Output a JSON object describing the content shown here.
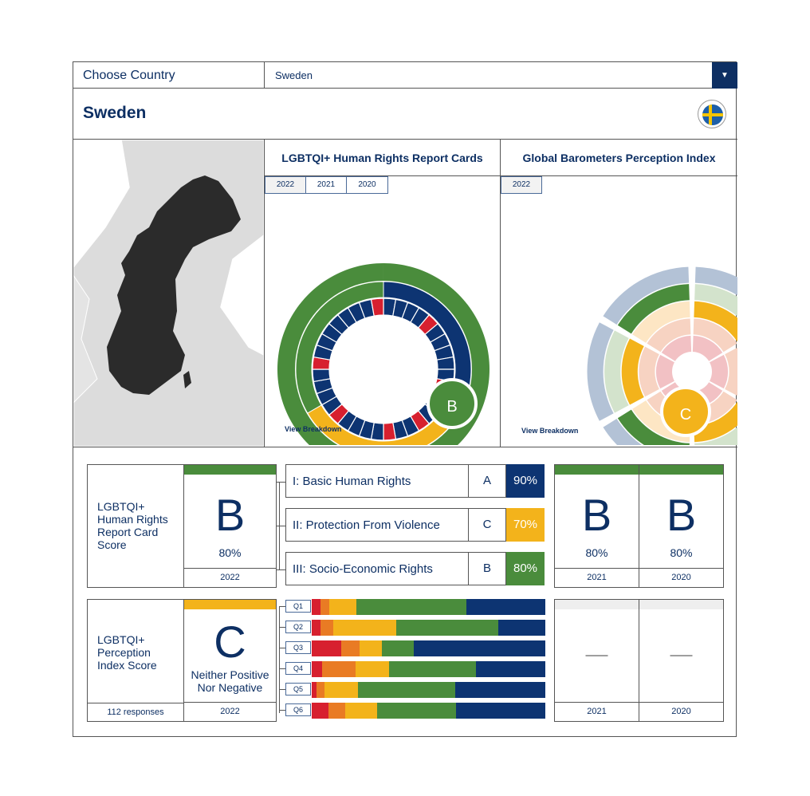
{
  "header": {
    "choose_label": "Choose Country",
    "selected_country": "Sweden",
    "country_title": "Sweden"
  },
  "colors": {
    "navy": "#0d3472",
    "green": "#4a8c3c",
    "yellow": "#f3b31b",
    "red": "#d7202f",
    "orange": "#e97b24"
  },
  "report_cards": {
    "title": "LGBTQI+ Human Rights Report Cards",
    "years": [
      "2022",
      "2021",
      "2020"
    ],
    "grade": "B",
    "view": "View Breakdown",
    "inner_segments": 36,
    "red_segments": [
      4,
      10,
      14,
      17,
      22,
      27,
      35
    ]
  },
  "perception": {
    "title": "Global Barometers Perception Index",
    "years": [
      "2022"
    ],
    "grade": "C",
    "view": "View Breakdown",
    "sector_levels": [
      3,
      3,
      3,
      4,
      3,
      4
    ],
    "sector_colors": [
      "yellow",
      "yellow",
      "yellow",
      "green",
      "yellow",
      "green"
    ]
  },
  "score_card": {
    "label": "LGBTQI+ Human Rights Report Card Score",
    "grade": "B",
    "percent": "80%",
    "year": "2022",
    "categories": [
      {
        "name": "I: Basic Human Rights",
        "grade": "A",
        "percent": "90%",
        "color": "#0d3472"
      },
      {
        "name": "II: Protection From Violence",
        "grade": "C",
        "percent": "70%",
        "color": "#f3b31b"
      },
      {
        "name": "III: Socio-Economic Rights",
        "grade": "B",
        "percent": "80%",
        "color": "#4a8c3c"
      }
    ],
    "history": [
      {
        "grade": "B",
        "percent": "80%",
        "year": "2021"
      },
      {
        "grade": "B",
        "percent": "80%",
        "year": "2020"
      }
    ]
  },
  "perception_score": {
    "label": "LGBTQI+ Perception Index Score",
    "grade": "C",
    "description": "Neither Positive Nor Negative",
    "responses": "112 responses",
    "year": "2022",
    "history": [
      {
        "value": "—",
        "year": "2021"
      },
      {
        "value": "—",
        "year": "2020"
      }
    ]
  },
  "chart_data": {
    "type": "bar",
    "stacked": true,
    "orientation": "horizontal",
    "categories": [
      "Q1",
      "Q2",
      "Q3",
      "Q4",
      "Q5",
      "Q6"
    ],
    "series": [
      {
        "name": "red",
        "color": "#d7202f",
        "values": [
          3.8,
          3.8,
          12.6,
          4.4,
          2.0,
          7.2
        ]
      },
      {
        "name": "orange",
        "color": "#e97b24",
        "values": [
          3.8,
          5.5,
          7.8,
          14.3,
          3.4,
          7.2
        ]
      },
      {
        "name": "yellow",
        "color": "#f3b31b",
        "values": [
          11.6,
          27.0,
          9.6,
          14.3,
          14.3,
          13.7
        ]
      },
      {
        "name": "green",
        "color": "#4a8c3c",
        "values": [
          47.1,
          43.7,
          13.7,
          37.2,
          41.6,
          33.8
        ]
      },
      {
        "name": "navy",
        "color": "#0d3472",
        "values": [
          33.7,
          20.0,
          56.3,
          29.8,
          38.7,
          38.1
        ]
      }
    ],
    "xlim": [
      0,
      100
    ]
  }
}
